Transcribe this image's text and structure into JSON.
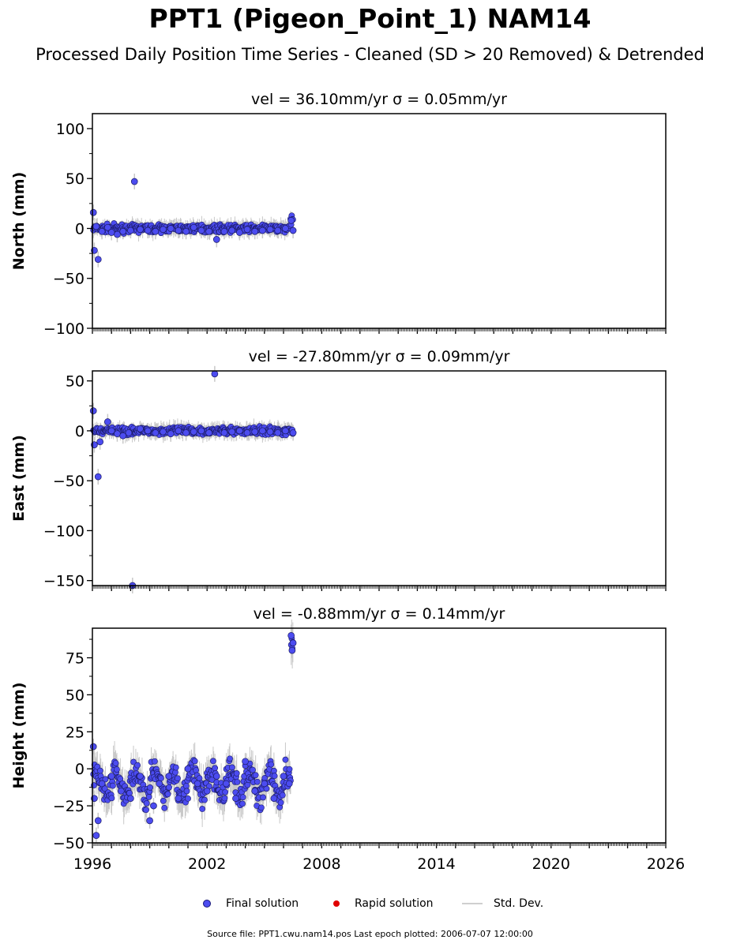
{
  "title": "PPT1 (Pigeon_Point_1) NAM14",
  "subtitle": "Processed Daily Position Time Series - Cleaned (SD > 20 Removed) & Detrended",
  "legend": {
    "final": "Final solution",
    "rapid": "Rapid solution",
    "stddev": "Std. Dev."
  },
  "colors": {
    "final": "#4c4cf0",
    "rapid": "#e00000",
    "stddev": "#c8c8c8"
  },
  "source": "Source file: PPT1.cwu.nam14.pos  Last epoch plotted: 2006-07-07 12:00:00",
  "chart_data": [
    {
      "type": "scatter",
      "title": "vel = 36.10mm/yr   σ = 0.05mm/yr",
      "ylabel": "North (mm)",
      "xlim": [
        1996,
        2026
      ],
      "ylim": [
        -100,
        115
      ],
      "yticks": [
        100,
        50,
        0,
        -50,
        -100
      ],
      "grid": false,
      "series": [
        {
          "name": "Final solution",
          "approx_scatter_sd": 2.5,
          "x": [
            1996.05,
            1996.1,
            1996.2,
            1996.3,
            1996.5,
            1996.8,
            1997.0,
            1997.3,
            1997.6,
            1998.0,
            1998.2,
            1998.5,
            1998.9,
            1999.3,
            1999.7,
            2000.1,
            2000.5,
            2000.9,
            2001.3,
            2001.7,
            2002.1,
            2002.5,
            2002.9,
            2003.3,
            2003.7,
            2004.1,
            2004.5,
            2004.9,
            2005.3,
            2005.7,
            2006.1,
            2006.4,
            2006.5
          ],
          "y": [
            16,
            -22,
            2,
            -31,
            -3,
            1,
            -4,
            -6,
            -3,
            -2,
            47,
            -1,
            -2,
            -3,
            -1,
            0,
            -2,
            -3,
            1,
            -2,
            -3,
            -11,
            -3,
            -2,
            -4,
            -1,
            -3,
            -2,
            -1,
            -2,
            0,
            8,
            -2
          ]
        }
      ]
    },
    {
      "type": "scatter",
      "title": "vel = -27.80mm/yr   σ = 0.09mm/yr",
      "ylabel": "East (mm)",
      "xlim": [
        1996,
        2026
      ],
      "ylim": [
        -155,
        60
      ],
      "yticks": [
        50,
        0,
        -50,
        -100,
        -150
      ],
      "grid": false,
      "series": [
        {
          "name": "Final solution",
          "approx_scatter_sd": 2.5,
          "x": [
            1996.05,
            1996.1,
            1996.3,
            1996.4,
            1996.8,
            1997.0,
            1997.3,
            1997.6,
            1997.9,
            1998.1,
            1998.5,
            1998.9,
            1999.3,
            1999.7,
            2000.1,
            2000.5,
            2000.9,
            2001.3,
            2001.7,
            2002.1,
            2002.4,
            2002.9,
            2003.3,
            2003.7,
            2004.1,
            2004.5,
            2004.9,
            2005.3,
            2005.7,
            2006.1,
            2006.5
          ],
          "y": [
            20,
            -14,
            -46,
            -11,
            9,
            0,
            -3,
            -5,
            -2,
            -155,
            2,
            0,
            -2,
            -1,
            -3,
            0,
            -2,
            -1,
            0,
            -2,
            57,
            -2,
            -1,
            0,
            -2,
            -1,
            0,
            -1,
            -2,
            0,
            -2
          ]
        }
      ]
    },
    {
      "type": "scatter",
      "title": "vel = -0.88mm/yr   σ = 0.14mm/yr",
      "ylabel": "Height (mm)",
      "xlim": [
        1996,
        2026
      ],
      "ylim": [
        -50,
        95
      ],
      "yticks": [
        75,
        50,
        25,
        0,
        -25,
        -50
      ],
      "xticks": [
        1996,
        2002,
        2008,
        2014,
        2020,
        2026
      ],
      "grid": false,
      "series": [
        {
          "name": "Final solution",
          "approx_scatter_sd": 7,
          "x": [
            1996.05,
            1996.1,
            1996.2,
            1996.3,
            1996.5,
            1997.0,
            1997.5,
            1998.0,
            1998.5,
            1999.0,
            1999.2,
            1999.5,
            2000.0,
            2000.5,
            2001.0,
            2001.5,
            2002.0,
            2002.5,
            2003.0,
            2003.5,
            2004.0,
            2004.5,
            2005.0,
            2005.5,
            2006.0,
            2006.3,
            2006.4,
            2006.45,
            2006.5
          ],
          "y": [
            15,
            -20,
            -45,
            -35,
            -10,
            -5,
            -15,
            -20,
            -5,
            -35,
            -25,
            -10,
            -5,
            -20,
            0,
            -10,
            -15,
            -5,
            -10,
            -20,
            5,
            -15,
            -10,
            -20,
            -5,
            -10,
            90,
            80,
            85
          ]
        }
      ]
    }
  ]
}
